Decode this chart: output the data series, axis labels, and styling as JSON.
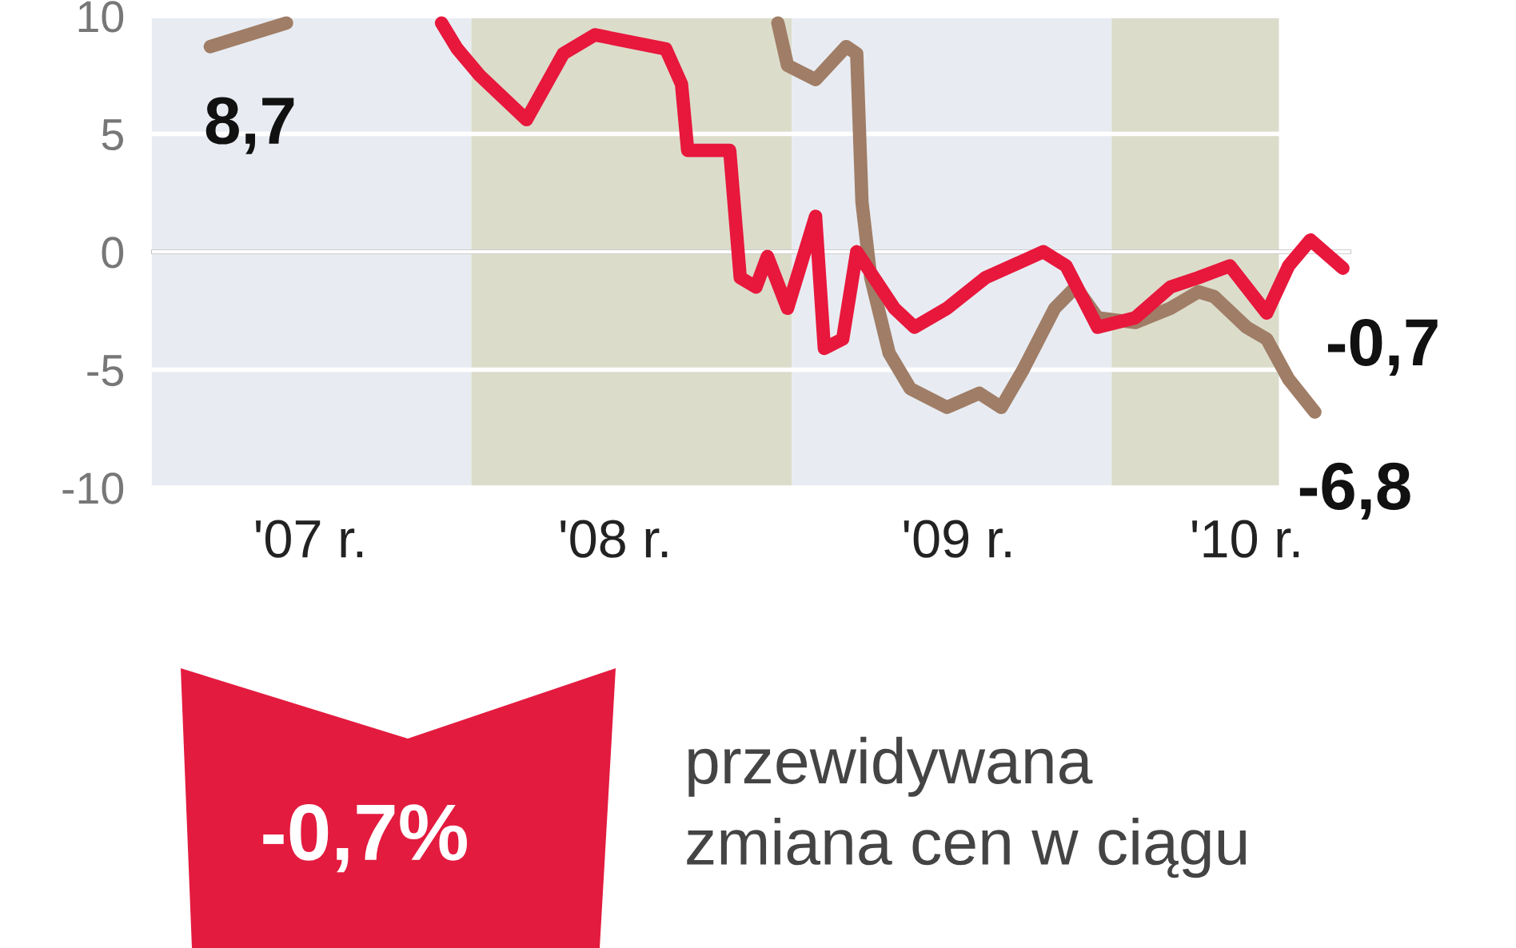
{
  "chart_data": {
    "type": "line",
    "xlim": [
      "2007-01-01",
      "2010-10-01"
    ],
    "xticks": [
      {
        "value": "2007-07-01",
        "label": "'07 r."
      },
      {
        "value": "2008-06-13",
        "label": "'08 r."
      },
      {
        "value": "2009-07-10",
        "label": "'09 r."
      },
      {
        "value": "2010-06-04",
        "label": "'10 r."
      }
    ],
    "ylim": [
      -10,
      10
    ],
    "yticks": [
      -10,
      -5,
      0,
      5,
      10
    ],
    "grid": "y",
    "legend": false,
    "marker": "none",
    "line_style": "solid",
    "series": [
      {
        "color": "#a07d66",
        "x": [
          "2007-03-09",
          "2007-06-04",
          "2008-03-13",
          "2008-12-16",
          "2008-12-27",
          "2009-01-28",
          "2009-03-04",
          "2009-03-16",
          "2009-03-22",
          "2009-04-01",
          "2009-04-22",
          "2009-05-16",
          "2009-06-27",
          "2009-08-03",
          "2009-08-28",
          "2009-09-22",
          "2009-10-28",
          "2009-11-21",
          "2009-12-16",
          "2010-01-28",
          "2010-03-09",
          "2010-04-10",
          "2010-04-28",
          "2010-06-04",
          "2010-06-27",
          "2010-07-22",
          "2010-08-21"
        ],
        "values": [
          8.7,
          9.7,
          null,
          9.7,
          7.9,
          7.3,
          8.7,
          8.4,
          2.1,
          -1.1,
          -4.3,
          -5.8,
          -6.6,
          -6.0,
          -6.6,
          -5.0,
          -2.4,
          -1.5,
          -2.8,
          -3.0,
          -2.4,
          -1.7,
          -1.9,
          -3.2,
          -3.7,
          -5.4,
          -6.8
        ]
      },
      {
        "color": "#e8173c",
        "x": [
          "2007-11-28",
          "2007-12-16",
          "2008-01-10",
          "2008-03-04",
          "2008-04-15",
          "2008-05-21",
          "2008-08-10",
          "2008-08-28",
          "2008-09-04",
          "2008-10-22",
          "2008-11-03",
          "2008-11-21",
          "2008-12-04",
          "2008-12-27",
          "2009-01-28",
          "2009-02-07",
          "2009-02-28",
          "2009-03-16",
          "2009-04-28",
          "2009-05-21",
          "2009-06-27",
          "2009-08-10",
          "2009-09-09",
          "2009-10-15",
          "2009-11-10",
          "2009-12-16",
          "2010-01-28",
          "2010-03-09",
          "2010-04-10",
          "2010-05-16",
          "2010-06-27",
          "2010-07-22",
          "2010-08-16",
          "2010-09-22"
        ],
        "values": [
          9.7,
          8.6,
          7.5,
          5.6,
          8.4,
          9.2,
          8.6,
          7.1,
          4.3,
          4.3,
          -1.1,
          -1.5,
          -0.2,
          -2.4,
          1.5,
          -4.1,
          -3.7,
          0.0,
          -2.4,
          -3.2,
          -2.4,
          -1.1,
          -0.6,
          0.0,
          -0.6,
          -3.2,
          -2.8,
          -1.5,
          -1.1,
          -0.6,
          -2.6,
          -0.6,
          0.5,
          -0.7
        ]
      }
    ],
    "ref_lines": [
      {
        "axis": "y",
        "value": 0,
        "color": "#000000",
        "line_style": "solid"
      }
    ],
    "bands": [
      {
        "axis": "x",
        "from": "2007-01-01",
        "to": "2008-01-01",
        "color": "#e8ecf2"
      },
      {
        "axis": "x",
        "from": "2008-01-01",
        "to": "2009-01-01",
        "color": "#dcdccb"
      },
      {
        "axis": "x",
        "from": "2009-01-01",
        "to": "2010-01-01",
        "color": "#e8ecf2"
      },
      {
        "axis": "x",
        "from": "2010-01-01",
        "to": "2010-07-11",
        "color": "#dcdccb"
      }
    ],
    "annotations": [
      {
        "text": "8,7",
        "x": "2007-03-09",
        "y": 8.7
      },
      {
        "text": "-0,7",
        "x": "2010-09-22",
        "y": -0.7
      },
      {
        "text": "-6,8",
        "x": "2010-08-21",
        "y": -6.8
      },
      "-0,7%",
      "przewidywana\nzmiana cen w ciągu"
    ]
  }
}
